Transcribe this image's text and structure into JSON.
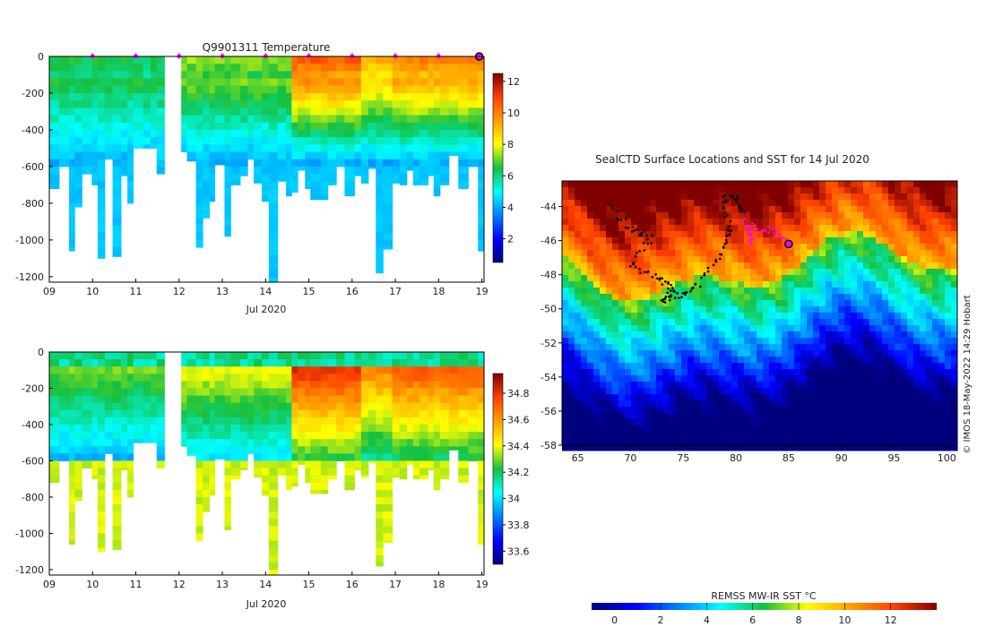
{
  "chart_data": [
    {
      "type": "heatmap",
      "id": "temperature",
      "title": "Q9901311  Temperature",
      "xlabel": "Jul 2020",
      "ylabel": "",
      "x_ticks": [
        "09",
        "10",
        "11",
        "12",
        "13",
        "14",
        "15",
        "16",
        "17",
        "18",
        "19"
      ],
      "y_ticks": [
        "0",
        "-200",
        "-400",
        "-600",
        "-800",
        "-1000",
        "-1200"
      ],
      "xlim": [
        9.0,
        19.05
      ],
      "ylim": [
        -1230,
        0
      ],
      "colorbar_ticks": [
        "2",
        "4",
        "6",
        "8",
        "10",
        "12"
      ],
      "colorbar_range": [
        0.5,
        12.5
      ],
      "colorscale": "jet",
      "surface_markers_days": [
        10,
        11,
        12,
        13,
        14,
        15,
        16,
        17,
        18
      ],
      "current_marker_day": 19.0,
      "grid": false
    },
    {
      "type": "heatmap",
      "id": "salinity",
      "title": "",
      "xlabel": "Jul 2020",
      "ylabel": "",
      "x_ticks": [
        "09",
        "10",
        "11",
        "12",
        "13",
        "14",
        "15",
        "16",
        "17",
        "18",
        "19"
      ],
      "y_ticks": [
        "0",
        "-200",
        "-400",
        "-600",
        "-800",
        "-1000",
        "-1200"
      ],
      "xlim": [
        9.0,
        19.05
      ],
      "ylim": [
        -1230,
        0
      ],
      "colorbar_ticks": [
        "33.6",
        "33.8",
        "34",
        "34.2",
        "34.4",
        "34.6",
        "34.8"
      ],
      "colorbar_range": [
        33.5,
        34.95
      ],
      "colorscale": "jet",
      "grid": false
    },
    {
      "type": "heatmap",
      "id": "sst-map",
      "title": "SealCTD Surface Locations and SST for 14 Jul 2020",
      "xlabel": "",
      "ylabel": "",
      "x_ticks": [
        "65",
        "70",
        "75",
        "80",
        "85",
        "90",
        "95",
        "100"
      ],
      "y_ticks": [
        "-44",
        "-46",
        "-48",
        "-50",
        "-52",
        "-54",
        "-56",
        "-58"
      ],
      "xlim": [
        63.5,
        101.0
      ],
      "ylim": [
        -58.0,
        -42.5
      ],
      "track_end": [
        85.0,
        -46.2
      ],
      "colorbar_label": "REMSS MW-IR SST °C",
      "colorbar_ticks": [
        "0",
        "2",
        "4",
        "6",
        "8",
        "10",
        "12"
      ],
      "colorbar_range": [
        -1,
        14
      ],
      "credit": "© IMOS 18-May-2022 14:29 Hobart",
      "colorscale": "jet",
      "grid": false
    }
  ]
}
